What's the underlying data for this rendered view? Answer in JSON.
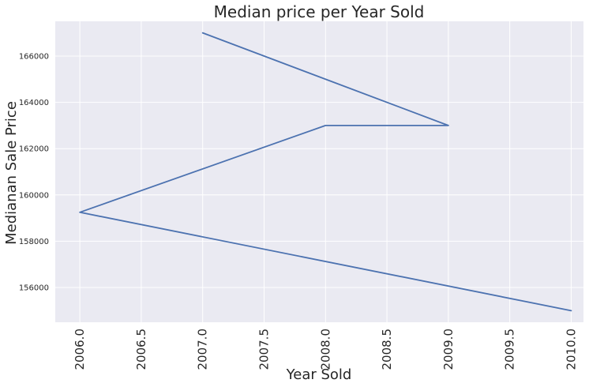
{
  "chart_data": {
    "type": "line",
    "title": "Median price per Year Sold",
    "xlabel": "Year Sold",
    "ylabel": "Medianan Sale Price",
    "xlim": [
      2005.8,
      2010.1
    ],
    "ylim": [
      154500,
      167500
    ],
    "x_ticks": [
      "2006.0",
      "2006.5",
      "2007.0",
      "2007.5",
      "2008.0",
      "2008.5",
      "2009.0",
      "2009.5",
      "2010.0"
    ],
    "y_ticks": [
      "156000",
      "158000",
      "160000",
      "162000",
      "164000",
      "166000"
    ],
    "grid": true,
    "series": [
      {
        "color": "#4c72b0",
        "points": [
          {
            "x": 2007,
            "y": 167000
          },
          {
            "x": 2009,
            "y": 163000
          },
          {
            "x": 2008,
            "y": 163000
          },
          {
            "x": 2006,
            "y": 159250
          },
          {
            "x": 2010,
            "y": 155000
          }
        ]
      }
    ]
  },
  "colors": {
    "plot_background": "#eaeaf2",
    "grid": "#ffffff",
    "series": "#4c72b0"
  }
}
